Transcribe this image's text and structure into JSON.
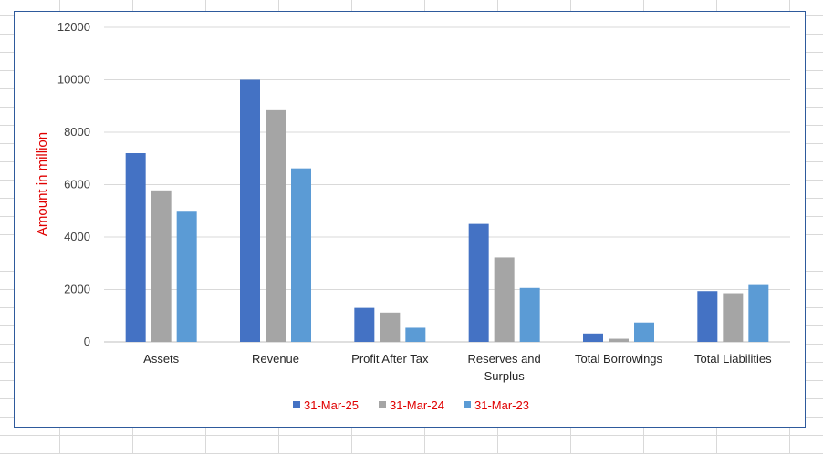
{
  "chart_data": {
    "type": "bar",
    "ylabel": "Amount in million",
    "ylim": [
      0,
      12000
    ],
    "yticks": [
      0,
      2000,
      4000,
      6000,
      8000,
      10000,
      12000
    ],
    "grid": true,
    "legend_position": "bottom",
    "categories": [
      [
        "Assets"
      ],
      [
        "Revenue"
      ],
      [
        "Profit After Tax"
      ],
      [
        "Reserves and",
        "Surplus"
      ],
      [
        "Total Borrowings"
      ],
      [
        "Total Liabilities"
      ]
    ],
    "series": [
      {
        "name": "31-Mar-25",
        "color": "#4472c4",
        "values": [
          7200,
          10000,
          1300,
          4500,
          320,
          1940
        ]
      },
      {
        "name": "31-Mar-24",
        "color": "#a5a5a5",
        "values": [
          5780,
          8840,
          1120,
          3220,
          120,
          1860
        ]
      },
      {
        "name": "31-Mar-23",
        "color": "#5b9bd5",
        "values": [
          5000,
          6620,
          540,
          2060,
          740,
          2170
        ]
      }
    ]
  }
}
